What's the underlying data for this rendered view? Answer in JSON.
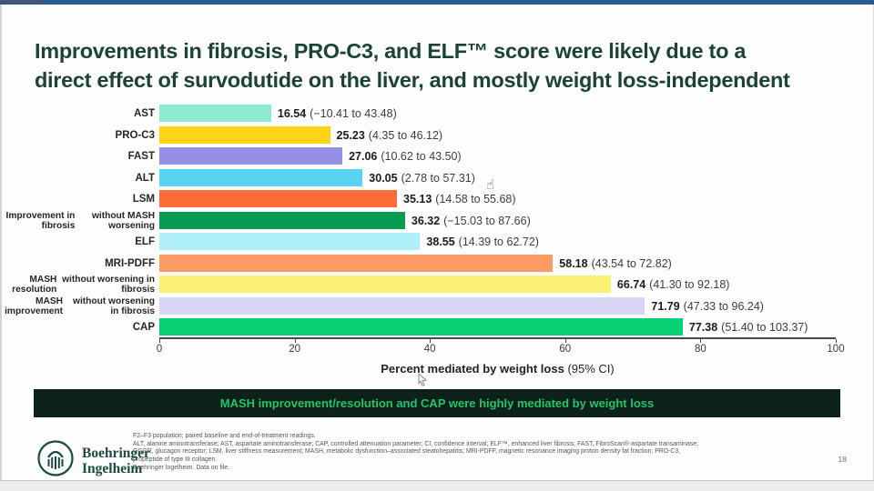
{
  "window": {
    "top_strip_color": "#2b5c90"
  },
  "slide": {
    "title": {
      "line1": "Improvements in fibrosis, PRO-C3, and ELF™ score were likely due to a",
      "line2": "direct effect of survodutide on the liver, and mostly weight loss-independent",
      "color": "#1d4238"
    },
    "banner": {
      "text": "MASH improvement/resolution and CAP were highly mediated by weight loss",
      "bg_color": "#0b2119",
      "text_color": "#25c36a"
    },
    "footer": {
      "logo": {
        "line1": "Boehringer",
        "line2": "Ingelheim",
        "icon": "boehringer-arch-icon",
        "color": "#1c4a42"
      },
      "footnotes": [
        "F2–F3 population; paired baseline and end-of-treatment readings.",
        "ALT, alanine aminotransferase; AST, aspartate aminotransferase; CAP, controlled attenuation parameter; CI, confidence interval; ELF™, enhanced liver fibrosis; FAST, FibroScan®-aspartate transaminase;",
        "GCGR, glucagon receptor; LSM, liver stiffness measurement; MASH, metabolic dysfunction–associated steatohepatitis; MRI-PDFF, magnetic resonance imaging proton density fat fraction; PRO-C3,",
        "propeptide of type III collagen.",
        "Boehringer Ingelheim. Data on file."
      ],
      "page_number": "18"
    }
  },
  "icons": {
    "hand_cursor": "☝"
  },
  "chart_data": {
    "type": "bar",
    "orientation": "horizontal",
    "title": "",
    "xlabel_bold": "Percent mediated by weight loss",
    "xlabel_regular": "(95% CI)",
    "xlim": [
      0,
      100
    ],
    "xticks": [
      0,
      20,
      40,
      60,
      80,
      100
    ],
    "grid": false,
    "legend": "none",
    "rows": [
      {
        "label": [
          "AST"
        ],
        "value": 16.54,
        "value_text": "16.54",
        "ci_text": "(−10.41 to 43.48)",
        "color": "#8cebd1"
      },
      {
        "label": [
          "PRO-C3"
        ],
        "value": 25.23,
        "value_text": "25.23",
        "ci_text": "(4.35 to 46.12)",
        "color": "#ffd416"
      },
      {
        "label": [
          "FAST"
        ],
        "value": 27.06,
        "value_text": "27.06",
        "ci_text": "(10.62 to 43.50)",
        "color": "#958fe7"
      },
      {
        "label": [
          "ALT"
        ],
        "value": 30.05,
        "value_text": "30.05",
        "ci_text": "(2.78 to 57.31)",
        "color": "#58d4f2"
      },
      {
        "label": [
          "LSM"
        ],
        "value": 35.13,
        "value_text": "35.13",
        "ci_text": "(14.58 to 55.68)",
        "color": "#fb6c38"
      },
      {
        "label": [
          "Improvement in fibrosis",
          "without MASH worsening"
        ],
        "value": 36.32,
        "value_text": "36.32",
        "ci_text": "(−15.03 to 87.66)",
        "color": "#089b52"
      },
      {
        "label": [
          "ELF"
        ],
        "value": 38.55,
        "value_text": "38.55",
        "ci_text": "(14.39 to 62.72)",
        "color": "#aeeffa"
      },
      {
        "label": [
          "MRI-PDFF"
        ],
        "value": 58.18,
        "value_text": "58.18",
        "ci_text": "(43.54 to 72.82)",
        "color": "#fc9b66"
      },
      {
        "label": [
          "MASH resolution",
          "without worsening in fibrosis"
        ],
        "value": 66.74,
        "value_text": "66.74",
        "ci_text": "(41.30 to 92.18)",
        "color": "#fbf174"
      },
      {
        "label": [
          "MASH improvement",
          "without worsening in fibrosis"
        ],
        "value": 71.79,
        "value_text": "71.79",
        "ci_text": "(47.33 to 96.24)",
        "color": "#d7d5f6"
      },
      {
        "label": [
          "CAP"
        ],
        "value": 77.38,
        "value_text": "77.38",
        "ci_text": "(51.40 to 103.37)",
        "color": "#09cf75"
      }
    ]
  }
}
